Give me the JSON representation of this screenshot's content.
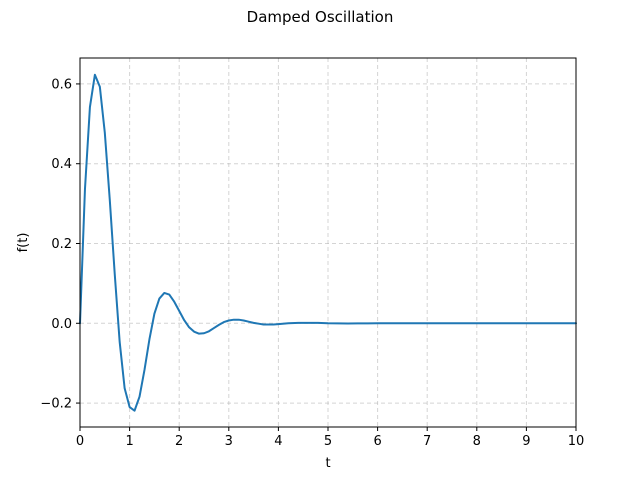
{
  "chart_data": {
    "type": "line",
    "title": "Damped Oscillation",
    "xlabel": "t",
    "ylabel": "f(t)",
    "xlim": [
      0,
      10
    ],
    "ylim": [
      -0.26,
      0.665
    ],
    "grid": true,
    "legend": "none",
    "x_ticks": [
      "0",
      "1",
      "2",
      "3",
      "4",
      "5",
      "6",
      "7",
      "8",
      "9",
      "10"
    ],
    "y_ticks": [
      "−0.2",
      "0.0",
      "0.2",
      "0.4",
      "0.6"
    ],
    "series": [
      {
        "color": "#1f77b4",
        "x": [
          0,
          0.1,
          0.2,
          0.3,
          0.4,
          0.5,
          0.6,
          0.7,
          0.8,
          0.9,
          1.0,
          1.1,
          1.2,
          1.3,
          1.4,
          1.5,
          1.6,
          1.7,
          1.8,
          1.9,
          2.0,
          2.1,
          2.2,
          2.3,
          2.4,
          2.5,
          2.6,
          2.7,
          2.8,
          2.9,
          3.0,
          3.1,
          3.2,
          3.3,
          3.4,
          3.5,
          3.6,
          3.7,
          3.8,
          3.9,
          4.0,
          4.2,
          4.4,
          4.6,
          4.8,
          5.0,
          5.2,
          5.4,
          5.6,
          5.8,
          6.0,
          6.2,
          6.4,
          6.6,
          6.8,
          7.0,
          7.5,
          8.0,
          8.5,
          9.0,
          9.5,
          10.0
        ],
        "y": [
          0.0,
          0.336,
          0.542,
          0.623,
          0.593,
          0.478,
          0.31,
          0.124,
          -0.047,
          -0.163,
          -0.21,
          -0.219,
          -0.184,
          -0.117,
          -0.04,
          0.024,
          0.062,
          0.076,
          0.072,
          0.054,
          0.031,
          0.008,
          -0.01,
          -0.021,
          -0.026,
          -0.025,
          -0.02,
          -0.012,
          -0.004,
          0.003,
          0.007,
          0.009,
          0.009,
          0.007,
          0.004,
          0.001,
          -0.001,
          -0.003,
          -0.003,
          -0.003,
          -0.002,
          0.0,
          0.001,
          0.001,
          0.001,
          0.0,
          -0.0003,
          -0.0004,
          -0.0003,
          -0.0001,
          0.0001,
          0.0002,
          0.0001,
          0.0,
          0.0,
          0.0,
          0.0,
          0.0,
          0.0,
          0.0,
          0.0,
          0.0
        ]
      }
    ]
  }
}
